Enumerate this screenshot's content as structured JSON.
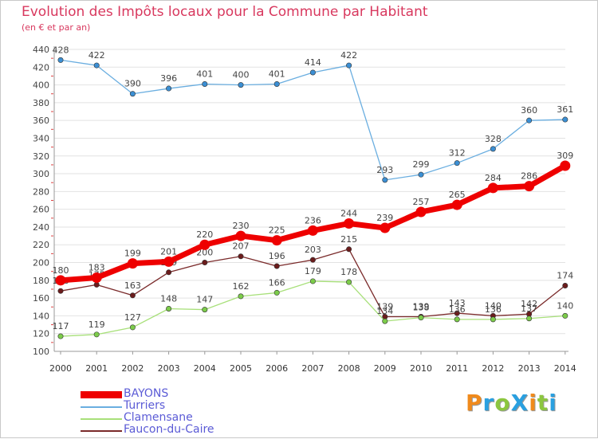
{
  "chart_data": {
    "type": "line",
    "title": "Evolution des Impôts locaux pour la Commune par Habitant",
    "subtitle": "(en € et par an)",
    "xlabel": "",
    "ylabel": "",
    "x": [
      "2000",
      "2001",
      "2002",
      "2003",
      "2004",
      "2005",
      "2006",
      "2007",
      "2008",
      "2009",
      "2010",
      "2011",
      "2012",
      "2013",
      "2014"
    ],
    "ylim": [
      100,
      440
    ],
    "yticks": [
      100,
      120,
      140,
      160,
      180,
      200,
      220,
      240,
      260,
      280,
      300,
      320,
      340,
      360,
      380,
      400,
      420,
      440
    ],
    "grid": "horizontal",
    "legend_position": "bottom-left",
    "series": [
      {
        "name": "Turriers",
        "color": "#6aaee0",
        "marker": "#3b8fd4",
        "values": [
          428,
          422,
          390,
          396,
          401,
          400,
          401,
          414,
          422,
          293,
          299,
          312,
          328,
          360,
          361
        ],
        "labels": [
          "428",
          "422",
          "390",
          "396",
          "401",
          "400",
          "401",
          "414",
          "422",
          "293",
          "299",
          "312",
          "328",
          "360",
          "361"
        ]
      },
      {
        "name": "Faucon-du-Caire",
        "color": "#7a2a2a",
        "marker": "#6b1c1c",
        "values": [
          168,
          175,
          163,
          189,
          200,
          207,
          196,
          203,
          215,
          139,
          139,
          143,
          140,
          142,
          174
        ],
        "labels": [
          "168",
          "175",
          "163",
          "189",
          "200",
          "207",
          "196",
          "203",
          "215",
          "139",
          "139",
          "143",
          "140",
          "142",
          "174"
        ]
      },
      {
        "name": "Clamensane",
        "color": "#a8e07a",
        "marker": "#7ccc4a",
        "values": [
          117,
          119,
          127,
          148,
          147,
          162,
          166,
          179,
          178,
          134,
          138,
          136,
          136,
          137,
          140
        ],
        "labels": [
          "117",
          "119",
          "127",
          "148",
          "147",
          "162",
          "166",
          "179",
          "178",
          "134",
          "138",
          "136",
          "136",
          "137",
          "140"
        ]
      },
      {
        "name": "BAYONS",
        "color": "#ee0000",
        "marker": "#ee0000",
        "values": [
          180,
          183,
          199,
          201,
          220,
          230,
          225,
          236,
          244,
          239,
          257,
          265,
          284,
          286,
          309
        ],
        "labels": [
          "180",
          "183",
          "199",
          "201",
          "220",
          "230",
          "225",
          "236",
          "244",
          "239",
          "257",
          "265",
          "284",
          "286",
          "309"
        ]
      }
    ]
  },
  "legend": {
    "items": [
      {
        "name": "BAYONS",
        "color": "#ee0000",
        "thick": true
      },
      {
        "name": "Turriers",
        "color": "#6aaee0",
        "thick": false
      },
      {
        "name": "Clamensane",
        "color": "#a8e07a",
        "thick": false
      },
      {
        "name": "Faucon-du-Caire",
        "color": "#7a2a2a",
        "thick": false
      }
    ]
  },
  "logo": {
    "text": "ProXiti",
    "colors": [
      "#f08a1c",
      "#2aa0e0",
      "#8cc63f",
      "#2aa0e0",
      "#f08a1c",
      "#8cc63f",
      "#2aa0e0"
    ]
  }
}
